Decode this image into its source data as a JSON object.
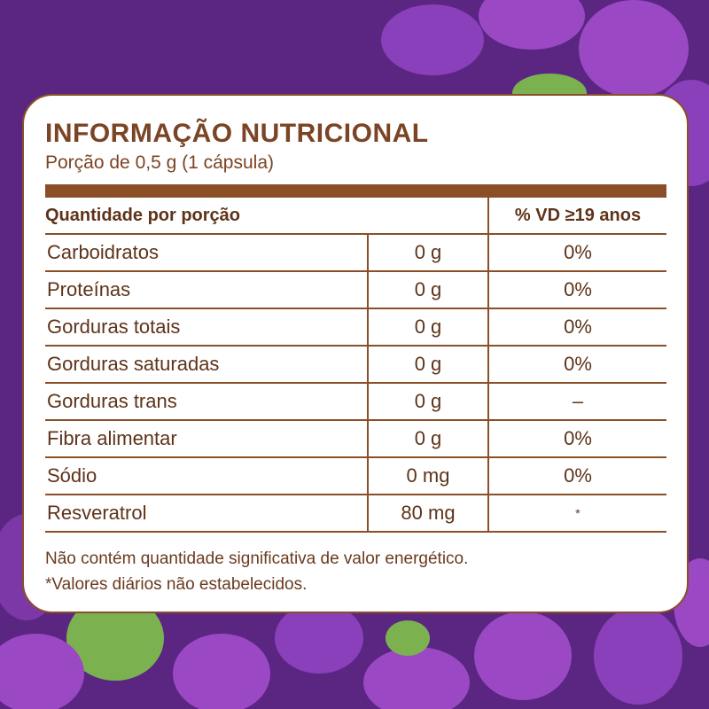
{
  "colors": {
    "background": "#5b2682",
    "blob_light": "#9a48c3",
    "blob_green": "#7bb24f",
    "brown": "#8a4f27",
    "text_brown": "#7b4425"
  },
  "label": {
    "title": "INFORMAÇÃO NUTRICIONAL",
    "serving": "Porção de 0,5 g (1 cápsula)",
    "header_quantity": "Quantidade por porção",
    "header_vd": "% VD ≥19 anos",
    "rows": [
      {
        "name": "Carboidratos",
        "amount": "0 g",
        "vd": "0%"
      },
      {
        "name": "Proteínas",
        "amount": "0 g",
        "vd": "0%"
      },
      {
        "name": "Gorduras totais",
        "amount": "0 g",
        "vd": "0%"
      },
      {
        "name": "Gorduras saturadas",
        "amount": "0 g",
        "vd": "0%"
      },
      {
        "name": "Gorduras trans",
        "amount": "0 g",
        "vd": "–"
      },
      {
        "name": "Fibra alimentar",
        "amount": "0 g",
        "vd": "0%"
      },
      {
        "name": "Sódio",
        "amount": "0 mg",
        "vd": "0%"
      },
      {
        "name": "Resveratrol",
        "amount": "80 mg",
        "vd": "*"
      }
    ],
    "note1": "Não contém quantidade significativa de valor energético.",
    "note2": "*Valores diários não estabelecidos."
  }
}
